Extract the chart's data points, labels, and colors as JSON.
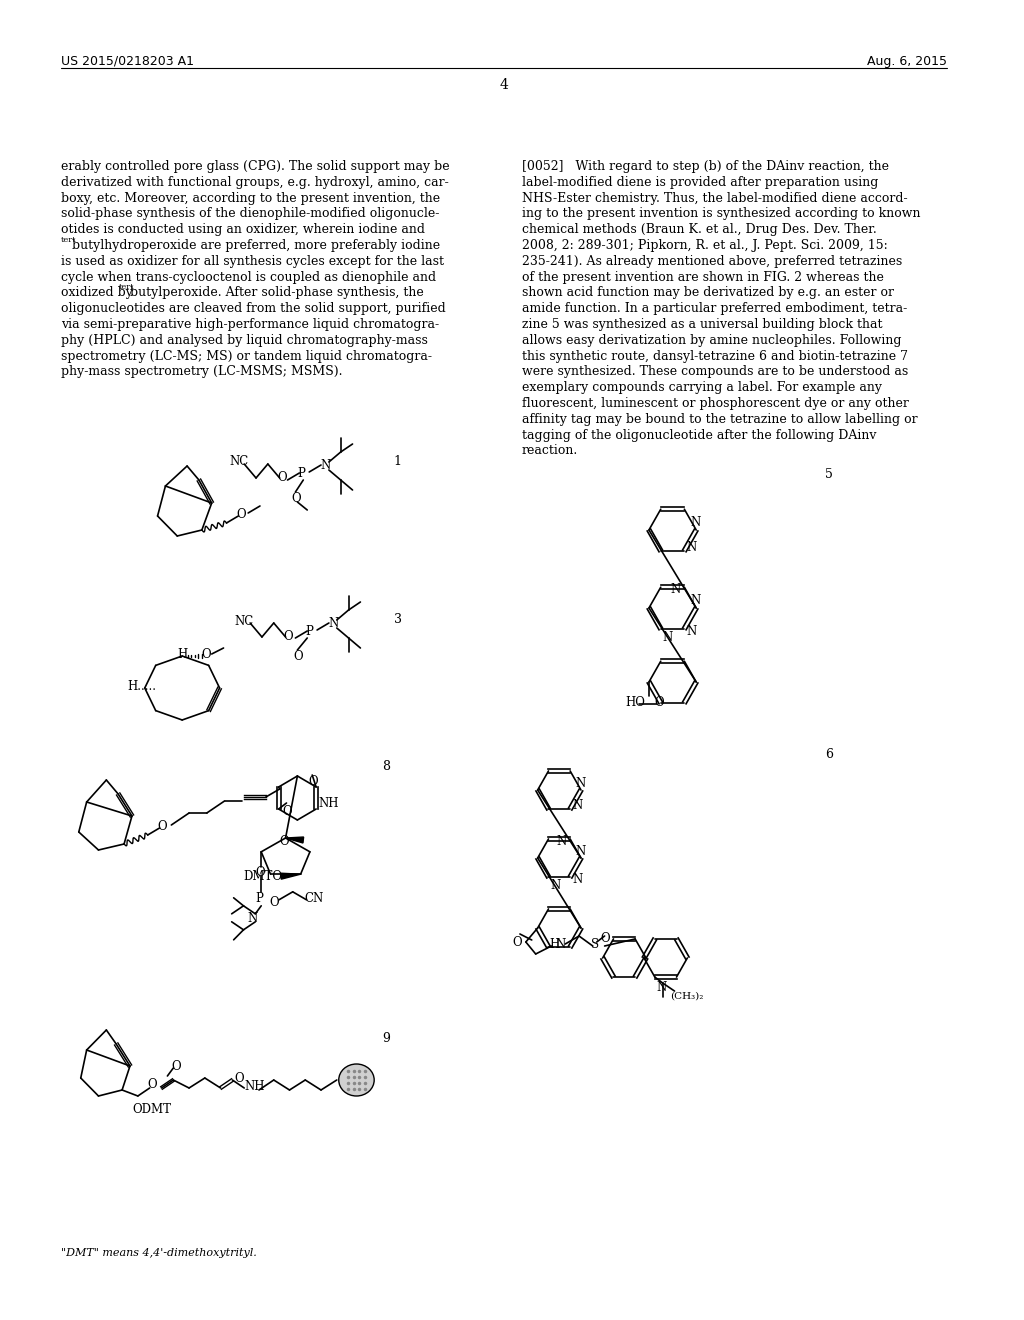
{
  "bg_color": "#ffffff",
  "header_left": "US 2015/0218203 A1",
  "header_right": "Aug. 6, 2015",
  "page_number": "4",
  "left_col_text": [
    "erably controlled pore glass (CPG). The solid support may be",
    "derivatized with functional groups, e.g. hydroxyl, amino, car-",
    "boxy, etc. Moreover, according to the present invention, the",
    "solid-phase synthesis of the dienophile-modified oligonucle-",
    "otides is conducted using an oxidizer, wherein iodine and",
    "tertbutylhydroperoxide are preferred, more preferably iodine",
    "is used as oxidizer for all synthesis cycles except for the last",
    "cycle when trans-cyclooctenol is coupled as dienophile and",
    "oxidized by tertbutylperoxide. After solid-phase synthesis, the",
    "oligonucleotides are cleaved from the solid support, purified",
    "via semi-preparative high-performance liquid chromatogra-",
    "phy (HPLC) and analysed by liquid chromatography-mass",
    "spectrometry (LC-MS; MS) or tandem liquid chromatogra-",
    "phy-mass spectrometry (LC-MSMS; MSMS)."
  ],
  "right_col_text": [
    "[0052]   With regard to step (b) of the DAinv reaction, the",
    "label-modified diene is provided after preparation using",
    "NHS-Ester chemistry. Thus, the label-modified diene accord-",
    "ing to the present invention is synthesized according to known",
    "chemical methods (Braun K. et al., Drug Des. Dev. Ther.",
    "2008, 2: 289-301; Pipkorn, R. et al., J. Pept. Sci. 2009, 15:",
    "235-241). As already mentioned above, preferred tetrazines",
    "of the present invention are shown in FIG. 2 whereas the",
    "shown acid function may be derivatized by e.g. an ester or",
    "amide function. In a particular preferred embodiment, tetra-",
    "zine 5 was synthesized as a universal building block that",
    "allows easy derivatization by amine nucleophiles. Following",
    "this synthetic route, dansyl-tetrazine 6 and biotin-tetrazine 7",
    "were synthesized. These compounds are to be understood as",
    "exemplary compounds carrying a label. For example any",
    "fluorescent, luminescent or phosphorescent dye or any other",
    "affinity tag may be bound to the tetrazine to allow labelling or",
    "tagging of the oligonucleotide after the following DAinv",
    "reaction."
  ],
  "footnote": "\"DMT\" means 4,4'-dimethoxytrityl."
}
